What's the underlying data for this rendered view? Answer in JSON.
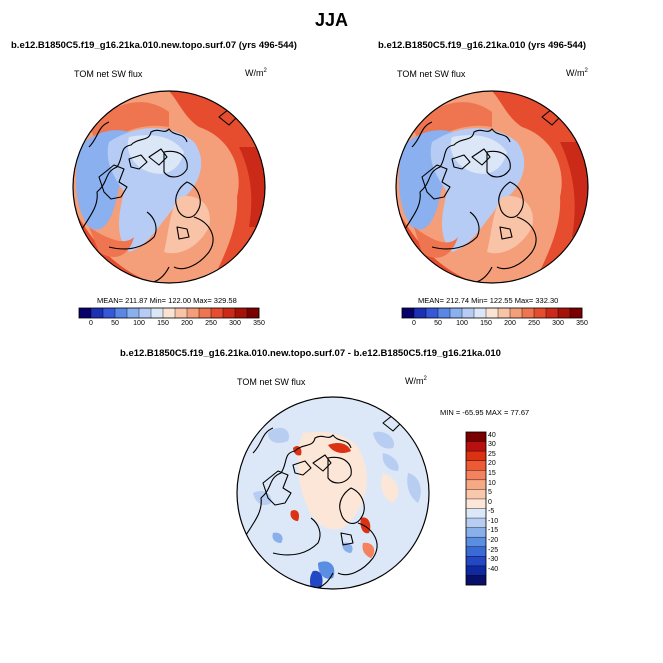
{
  "figure": {
    "season": "JJA",
    "variable_label": "TOM net SW flux",
    "units_base": "W/m",
    "units_exp": "2"
  },
  "chart_data": [
    {
      "type": "heatmap",
      "projection": "north-polar-stereographic",
      "title": "b.e12.B1850C5.f19_g16.21ka.010.new.topo.surf.07 (yrs 496-544)",
      "field": "TOM net SW flux",
      "units": "W/m2",
      "stats": {
        "label": "MEAN= 211.87  Min= 122.00  Max= 329.58",
        "mean": 211.87,
        "min": 122.0,
        "max": 329.58
      },
      "colorbar": {
        "orientation": "horizontal",
        "ticks": [
          "0",
          "50",
          "100",
          "150",
          "200",
          "250",
          "300",
          "350"
        ],
        "colors": [
          "#08006b",
          "#1c30b4",
          "#3458d8",
          "#5a86e6",
          "#8ab0f0",
          "#b6ccf4",
          "#dbe6f7",
          "#fbe3d3",
          "#f8c3a6",
          "#f49e7a",
          "#ef7450",
          "#e64c2e",
          "#cc2a18",
          "#a51308",
          "#7a0000"
        ]
      }
    },
    {
      "type": "heatmap",
      "projection": "north-polar-stereographic",
      "title": "b.e12.B1850C5.f19_g16.21ka.010 (yrs 496-544)",
      "field": "TOM net SW flux",
      "units": "W/m2",
      "stats": {
        "label": "MEAN= 212.74  Min= 122.55  Max= 332.30",
        "mean": 212.74,
        "min": 122.55,
        "max": 332.3
      },
      "colorbar": {
        "orientation": "horizontal",
        "ticks": [
          "0",
          "50",
          "100",
          "150",
          "200",
          "250",
          "300",
          "350"
        ],
        "colors": [
          "#08006b",
          "#1c30b4",
          "#3458d8",
          "#5a86e6",
          "#8ab0f0",
          "#b6ccf4",
          "#dbe6f7",
          "#fbe3d3",
          "#f8c3a6",
          "#f49e7a",
          "#ef7450",
          "#e64c2e",
          "#cc2a18",
          "#a51308",
          "#7a0000"
        ]
      }
    },
    {
      "type": "heatmap",
      "projection": "north-polar-stereographic",
      "title": "b.e12.B1850C5.f19_g16.21ka.010.new.topo.surf.07 - b.e12.B1850C5.f19_g16.21ka.010",
      "field": "TOM net SW flux",
      "units": "W/m2",
      "stats": {
        "label": "MIN = -65.95 MAX =  77.67",
        "min": -65.95,
        "max": 77.67
      },
      "colorbar": {
        "orientation": "vertical",
        "ticks": [
          "40",
          "30",
          "25",
          "20",
          "15",
          "10",
          "5",
          "0",
          "-5",
          "-10",
          "-15",
          "-20",
          "-25",
          "-30",
          "-40"
        ],
        "colors": [
          "#7a0000",
          "#b81010",
          "#dc3214",
          "#ec5a36",
          "#f5825e",
          "#f7a884",
          "#f9c8aa",
          "#fbe6d8",
          "#dce8f8",
          "#b8cdf2",
          "#8ab0ec",
          "#5a8ee2",
          "#3a6ad8",
          "#2448c4",
          "#1028a0",
          "#08106a"
        ]
      }
    }
  ]
}
